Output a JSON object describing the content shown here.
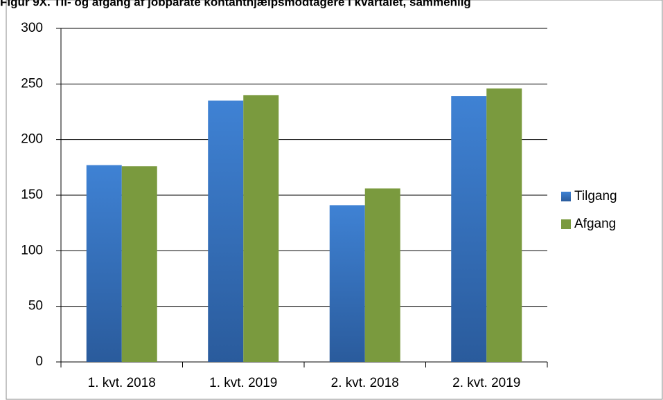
{
  "chart_data": {
    "type": "bar",
    "title": "Figur 9X. Til- og afgang af jobparate kontanthjælpsmodtagere i kvartalet, sammenlig",
    "categories": [
      "1. kvt. 2018",
      "1. kvt. 2019",
      "2. kvt. 2018",
      "2. kvt. 2019"
    ],
    "series": [
      {
        "name": "Tilgang",
        "color": "#3a78c6",
        "values": [
          177,
          235,
          141,
          239
        ]
      },
      {
        "name": "Afgang",
        "color": "#7a9a3e",
        "values": [
          176,
          240,
          156,
          246
        ]
      }
    ],
    "ylim": [
      0,
      300
    ],
    "yticks": [
      0,
      50,
      100,
      150,
      200,
      250,
      300
    ],
    "grid": true,
    "legend": "right"
  }
}
